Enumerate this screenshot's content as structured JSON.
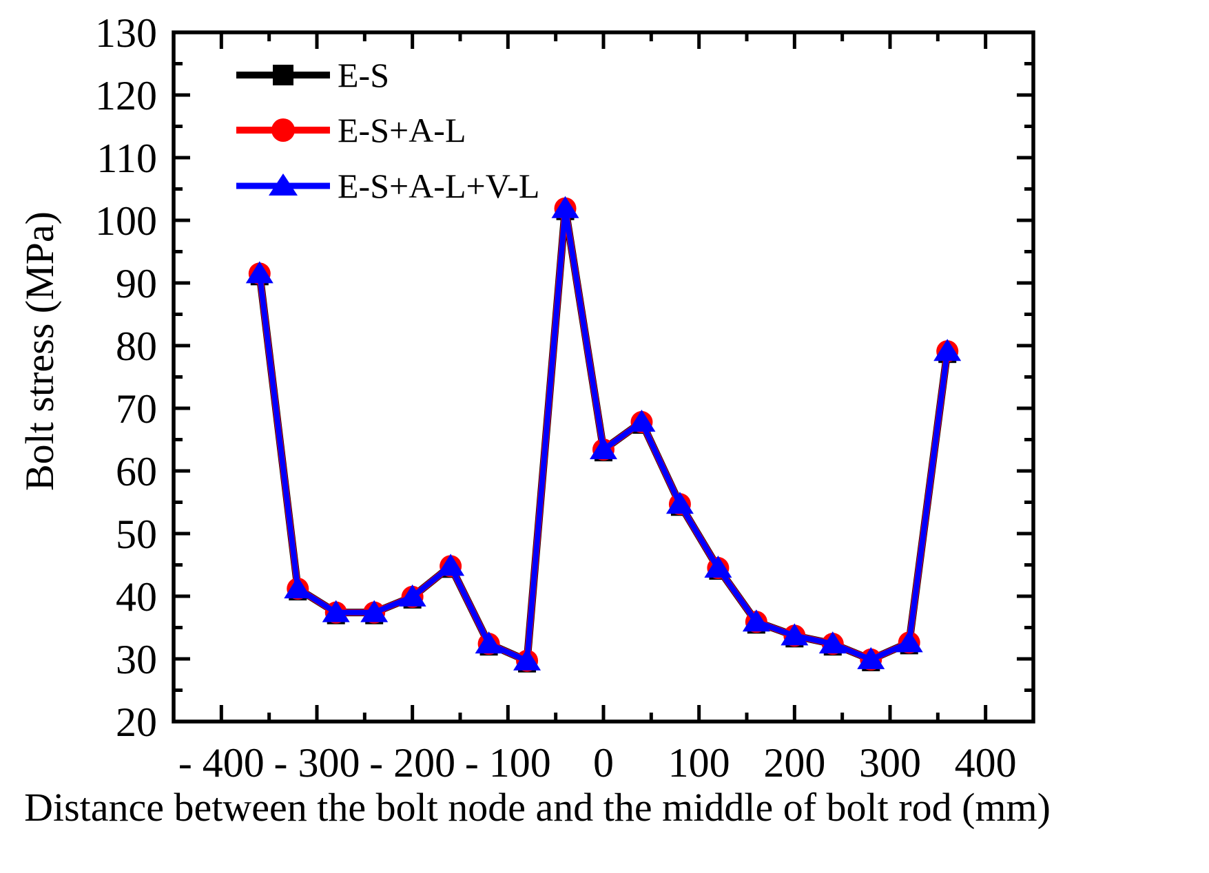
{
  "chart_data": {
    "type": "line",
    "title": "",
    "xlabel": "Distance between the bolt node and the middle of bolt rod (mm)",
    "ylabel": "Bolt stress (MPa)",
    "xlim": [
      -450,
      450
    ],
    "ylim": [
      20,
      130
    ],
    "grid": false,
    "legend_position": "top-left",
    "background_color": "#ffffff",
    "axis_color": "#000000",
    "x_major_ticks": [
      -400,
      -300,
      -200,
      -100,
      0,
      100,
      200,
      300,
      400
    ],
    "x_tick_labels": [
      "- 400",
      "- 300",
      "- 200",
      "- 100",
      "0",
      "100",
      "200",
      "300",
      "400"
    ],
    "x_minor_step": 50,
    "y_major_ticks": [
      20,
      30,
      40,
      50,
      60,
      70,
      80,
      90,
      100,
      110,
      120,
      130
    ],
    "y_tick_labels": [
      "20",
      "30",
      "40",
      "50",
      "60",
      "70",
      "80",
      "90",
      "100",
      "110",
      "120",
      "130"
    ],
    "y_minor_step": 5,
    "x": [
      -360,
      -320,
      -280,
      -240,
      -200,
      -160,
      -120,
      -80,
      -40,
      0,
      40,
      80,
      120,
      160,
      200,
      240,
      280,
      320,
      360
    ],
    "series": [
      {
        "name": "E-S",
        "color": "#000000",
        "marker": "square",
        "values": [
          91.5,
          41.2,
          37.4,
          37.4,
          39.9,
          44.8,
          32.4,
          29.7,
          101.9,
          63.4,
          67.8,
          54.7,
          44.5,
          35.9,
          33.7,
          32.4,
          29.9,
          32.6,
          79.1
        ]
      },
      {
        "name": "E-S+A-L",
        "color": "#ff0000",
        "marker": "circle",
        "values": [
          91.5,
          41.2,
          37.4,
          37.4,
          39.9,
          44.8,
          32.4,
          29.7,
          101.9,
          63.4,
          67.8,
          54.7,
          44.5,
          35.9,
          33.7,
          32.4,
          29.9,
          32.6,
          79.1
        ]
      },
      {
        "name": "E-S+A-L+V-L",
        "color": "#0000ff",
        "marker": "triangle",
        "values": [
          91.5,
          41.2,
          37.4,
          37.4,
          39.9,
          44.8,
          32.4,
          29.7,
          101.9,
          63.4,
          67.8,
          54.7,
          44.5,
          35.9,
          33.7,
          32.4,
          29.9,
          32.6,
          79.1
        ]
      }
    ]
  }
}
